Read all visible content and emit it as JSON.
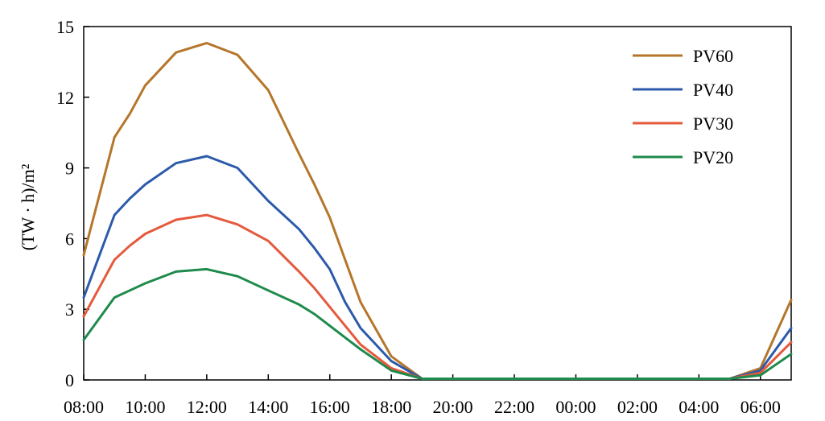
{
  "chart_data": {
    "type": "line",
    "title": "",
    "xlabel": "",
    "ylabel": "(TW · h)/m²",
    "ylim": [
      0,
      15
    ],
    "yticks": [
      "0",
      "3",
      "6",
      "9",
      "12",
      "15"
    ],
    "xticks": [
      "08:00",
      "10:00",
      "12:00",
      "14:00",
      "16:00",
      "18:00",
      "20:00",
      "22:00",
      "00:00",
      "02:00",
      "04:00",
      "06:00"
    ],
    "x": [
      "08:00",
      "09:00",
      "09:30",
      "10:00",
      "11:00",
      "12:00",
      "13:00",
      "14:00",
      "15:00",
      "15:30",
      "16:00",
      "16:30",
      "17:00",
      "18:00",
      "19:00",
      "20:00",
      "21:00",
      "22:00",
      "23:00",
      "00:00",
      "01:00",
      "02:00",
      "03:00",
      "04:00",
      "05:00",
      "06:00",
      "07:00"
    ],
    "grid": false,
    "legend_position": "top-right",
    "series": [
      {
        "name": "PV60",
        "color": "#B5762B",
        "values": [
          5.3,
          10.3,
          11.3,
          12.5,
          13.9,
          14.3,
          13.8,
          12.3,
          9.6,
          8.3,
          6.9,
          5.1,
          3.3,
          1.0,
          0.05,
          0.05,
          0.05,
          0.05,
          0.05,
          0.05,
          0.05,
          0.05,
          0.05,
          0.05,
          0.05,
          0.5,
          3.4
        ]
      },
      {
        "name": "PV40",
        "color": "#2C5AAA",
        "values": [
          3.5,
          7.0,
          7.7,
          8.3,
          9.2,
          9.5,
          9.0,
          7.6,
          6.4,
          5.6,
          4.7,
          3.3,
          2.2,
          0.8,
          0.05,
          0.05,
          0.05,
          0.05,
          0.05,
          0.05,
          0.05,
          0.05,
          0.05,
          0.05,
          0.05,
          0.4,
          2.2
        ]
      },
      {
        "name": "PV30",
        "color": "#E5593C",
        "values": [
          2.7,
          5.1,
          5.7,
          6.2,
          6.8,
          7.0,
          6.6,
          5.9,
          4.6,
          3.9,
          3.1,
          2.3,
          1.5,
          0.5,
          0.05,
          0.05,
          0.05,
          0.05,
          0.05,
          0.05,
          0.05,
          0.05,
          0.05,
          0.05,
          0.05,
          0.3,
          1.6
        ]
      },
      {
        "name": "PV20",
        "color": "#1E8A4C",
        "values": [
          1.7,
          3.5,
          3.8,
          4.1,
          4.6,
          4.7,
          4.4,
          3.8,
          3.2,
          2.8,
          2.3,
          1.8,
          1.3,
          0.4,
          0.05,
          0.05,
          0.05,
          0.05,
          0.05,
          0.05,
          0.05,
          0.05,
          0.05,
          0.05,
          0.05,
          0.2,
          1.1
        ]
      }
    ]
  }
}
